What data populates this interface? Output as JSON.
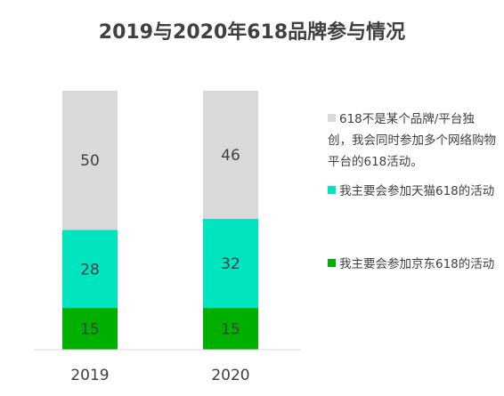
{
  "chart_data": {
    "type": "stacked-bar",
    "title": "2019与2020年618品牌参与情况",
    "categories": [
      "2019",
      "2020"
    ],
    "series": [
      {
        "name": "我主要会参加京东618的活动",
        "values": [
          15,
          15
        ],
        "color": "#00b000"
      },
      {
        "name": "我主要会参加天猫618的活动",
        "values": [
          28,
          32
        ],
        "color": "#00e5c0"
      },
      {
        "name": "618不是某个品牌/平台独创，我会同时参加多个网络购物平台的618活动。",
        "values": [
          50,
          46
        ],
        "color": "#d9d9d9"
      }
    ],
    "ylim": [
      0,
      93
    ],
    "grid": false,
    "legend_position": "right"
  }
}
